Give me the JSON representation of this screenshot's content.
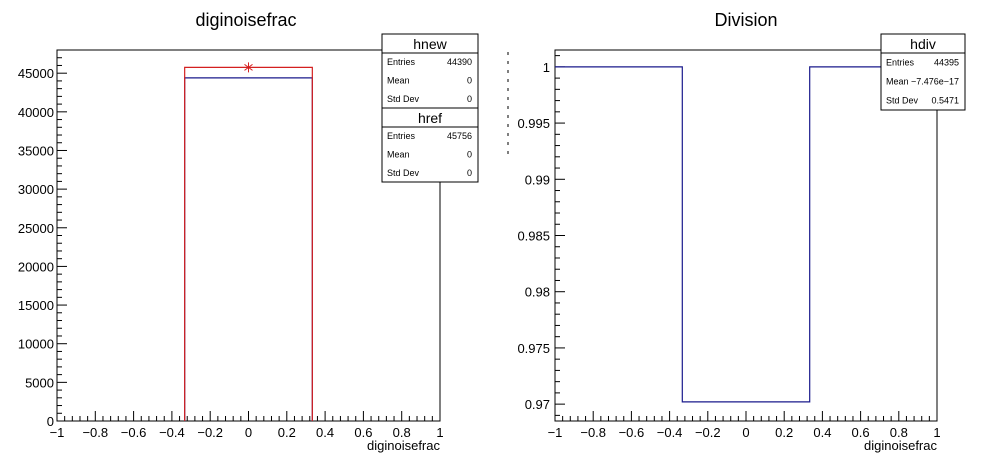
{
  "chart_data": [
    {
      "type": "histogram",
      "title": "diginoisefrac",
      "xlabel": "diginoisefrac",
      "ylabel": "",
      "xlim": [
        -1,
        1
      ],
      "ylim": [
        0,
        48000
      ],
      "x_ticks": [
        "−1",
        "−0.8",
        "−0.6",
        "−0.4",
        "−0.2",
        "0",
        "0.2",
        "0.4",
        "0.6",
        "0.8",
        "1"
      ],
      "y_ticks": [
        "0",
        "5000",
        "10000",
        "15000",
        "20000",
        "25000",
        "30000",
        "35000",
        "40000",
        "45000"
      ],
      "x_tick_values": [
        -1,
        -0.8,
        -0.6,
        -0.4,
        -0.2,
        0,
        0.2,
        0.4,
        0.6,
        0.8,
        1
      ],
      "y_tick_values": [
        0,
        5000,
        10000,
        15000,
        20000,
        25000,
        30000,
        35000,
        40000,
        45000
      ],
      "bin_edges": [
        -1,
        -0.3333,
        0.3333,
        1
      ],
      "series": [
        {
          "name": "hnew",
          "values": [
            0,
            44390,
            0
          ],
          "color": "#1a1a8c"
        },
        {
          "name": "href",
          "values": [
            0,
            45756,
            0
          ],
          "color": "#d42020"
        }
      ],
      "marker": {
        "x": 0,
        "y": 45756
      },
      "stats": [
        {
          "name": "hnew",
          "rows": [
            {
              "label": "Entries",
              "value": "44390"
            },
            {
              "label": "Mean",
              "value": "0"
            },
            {
              "label": "Std Dev",
              "value": "0"
            }
          ]
        },
        {
          "name": "href",
          "rows": [
            {
              "label": "Entries",
              "value": "45756"
            },
            {
              "label": "Mean",
              "value": "0"
            },
            {
              "label": "Std Dev",
              "value": "0"
            }
          ]
        }
      ]
    },
    {
      "type": "histogram",
      "title": "Division",
      "xlabel": "diginoisefrac",
      "ylabel": "",
      "xlim": [
        -1,
        1
      ],
      "ylim": [
        0.9685,
        1.0015
      ],
      "x_ticks": [
        "−1",
        "−0.8",
        "−0.6",
        "−0.4",
        "−0.2",
        "0",
        "0.2",
        "0.4",
        "0.6",
        "0.8",
        "1"
      ],
      "y_ticks": [
        "0.97",
        "0.975",
        "0.98",
        "0.985",
        "0.99",
        "0.995",
        "1"
      ],
      "x_tick_values": [
        -1,
        -0.8,
        -0.6,
        -0.4,
        -0.2,
        0,
        0.2,
        0.4,
        0.6,
        0.8,
        1
      ],
      "y_tick_values": [
        0.97,
        0.975,
        0.98,
        0.985,
        0.99,
        0.995,
        1
      ],
      "bin_edges": [
        -1,
        -0.3333,
        0.3333,
        1
      ],
      "series": [
        {
          "name": "hdiv",
          "values": [
            1,
            0.9702,
            1
          ],
          "color": "#1a1a8c"
        }
      ],
      "stats": [
        {
          "name": "hdiv",
          "rows": [
            {
              "label": "Entries",
              "value": "44395"
            },
            {
              "label": "Mean",
              "value": "−7.476e−17"
            },
            {
              "label": "Std Dev",
              "value": "0.5471"
            }
          ]
        }
      ]
    }
  ]
}
